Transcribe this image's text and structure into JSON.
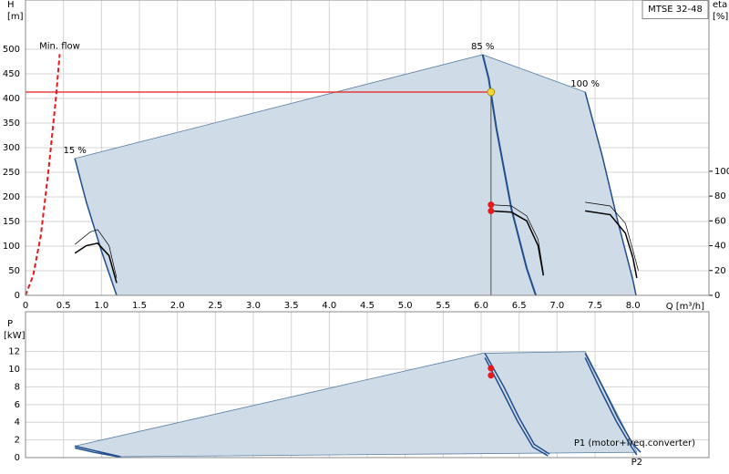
{
  "chart_data": [
    {
      "type": "line",
      "title": "MTSE 32-48",
      "y_label": "H",
      "y_unit": "[m]",
      "y2_label": "eta",
      "y2_unit": "[%]",
      "x_label": "Q [m³/h]",
      "xlim": [
        0,
        9
      ],
      "ylim": [
        0,
        600
      ],
      "y2lim": [
        0,
        238
      ],
      "grid": true,
      "xticks": [
        0,
        0.5,
        {
          "value": 1,
          "label": "1.0"
        },
        1.5,
        {
          "value": 2,
          "label": "2.0"
        },
        2.5,
        {
          "value": 3,
          "label": "3.0"
        },
        3.5,
        {
          "value": 4,
          "label": "4.0"
        },
        4.5,
        {
          "value": 5,
          "label": "5.0"
        },
        5.5,
        {
          "value": 6,
          "label": "6.0"
        },
        6.5,
        {
          "value": 7,
          "label": "7.0"
        },
        7.5,
        {
          "value": 8,
          "label": "8.0"
        }
      ],
      "yticks": [
        0,
        50,
        100,
        150,
        200,
        250,
        300,
        350,
        400,
        450,
        500
      ],
      "y2ticks": [
        0,
        20,
        40,
        60,
        80,
        100
      ],
      "area": {
        "color": "#cfdbe6",
        "edge": "#5a7fa6",
        "x": [
          0.65,
          6.02,
          7.37,
          7.6,
          7.8,
          8.0,
          8.04,
          1.2,
          1.0,
          0.8
        ],
        "values": [
          278,
          489,
          413,
          280,
          150,
          30,
          0,
          0,
          90,
          190
        ]
      },
      "series": [
        {
          "name": "Min. flow",
          "color": "#e8191b",
          "style": "dashed",
          "linewidth": 2,
          "x": [
            0,
            0.1,
            0.2,
            0.3,
            0.4,
            0.45
          ],
          "values": [
            0,
            40,
            120,
            250,
            400,
            490
          ]
        },
        {
          "name": "15 %",
          "color": "#1f4e8c",
          "linewidth": 1.5,
          "x": [
            0.65,
            0.8,
            1.0,
            1.2
          ],
          "values": [
            278,
            190,
            90,
            0
          ]
        },
        {
          "name": "85 %",
          "color": "#1f4e8c",
          "linewidth": 2,
          "x": [
            6.02,
            6.1,
            6.2,
            6.4,
            6.6,
            6.72
          ],
          "values": [
            489,
            440,
            340,
            175,
            55,
            0
          ]
        },
        {
          "name": "100 %",
          "color": "#1f4e8c",
          "linewidth": 1.5,
          "x": [
            7.37,
            7.6,
            7.8,
            8.0,
            8.04
          ],
          "values": [
            413,
            280,
            150,
            30,
            0
          ]
        },
        {
          "color": "#000000",
          "linewidth": 1.5,
          "axis": "y2",
          "x": [
            0.65,
            0.8,
            0.95,
            1.1,
            1.2
          ],
          "values": [
            34,
            40,
            42,
            32,
            10
          ]
        },
        {
          "color": "#000000",
          "linewidth": 0.7,
          "axis": "y2",
          "x": [
            0.65,
            0.85,
            0.95,
            1.1,
            1.2
          ],
          "values": [
            41,
            51,
            53,
            40,
            14
          ]
        },
        {
          "color": "#000000",
          "linewidth": 1.5,
          "axis": "y2",
          "x": [
            6.13,
            6.4,
            6.6,
            6.75,
            6.82
          ],
          "values": [
            68,
            67,
            60,
            40,
            16
          ]
        },
        {
          "color": "#000000",
          "linewidth": 0.7,
          "axis": "y2",
          "x": [
            6.13,
            6.4,
            6.6,
            6.75,
            6.82
          ],
          "values": [
            73,
            72,
            64,
            45,
            18
          ]
        },
        {
          "color": "#000000",
          "linewidth": 1.5,
          "axis": "y2",
          "x": [
            7.37,
            7.7,
            7.9,
            8.0,
            8.05
          ],
          "values": [
            68,
            65,
            50,
            30,
            14
          ]
        },
        {
          "color": "#000000",
          "linewidth": 0.7,
          "axis": "y2",
          "x": [
            7.37,
            7.7,
            7.9,
            8.0,
            8.07
          ],
          "values": [
            75,
            72,
            58,
            36,
            20
          ]
        }
      ],
      "duty_point": {
        "x": 6.13,
        "y": 413,
        "color": "#f5d33a",
        "line_color": "#e8191b"
      },
      "points": {
        "x": 6.13,
        "axis": "y2",
        "color": "#e8191b",
        "values": [
          73,
          68
        ]
      }
    },
    {
      "type": "line",
      "y_label": "P",
      "y_unit": "[kW]",
      "xlim": [
        0,
        9
      ],
      "ylim": [
        0,
        16.5
      ],
      "grid": true,
      "yticks": [
        0,
        2,
        4,
        6,
        8,
        10,
        12
      ],
      "area": {
        "color": "#cfdbe6",
        "edge": "#5a7fa6",
        "x": [
          0.65,
          6.02,
          7.37,
          8.05,
          1.25
        ],
        "values": [
          1.3,
          11.8,
          12,
          0.6,
          0.1
        ]
      },
      "series": [
        {
          "color": "#1f4e8c",
          "linewidth": 1.5,
          "x": [
            0.65,
            0.9,
            1.25
          ],
          "values": [
            1.3,
            0.8,
            0.1
          ]
        },
        {
          "color": "#1f4e8c",
          "linewidth": 1.5,
          "x": [
            0.65,
            0.9,
            1.25
          ],
          "values": [
            1.1,
            0.6,
            0.05
          ]
        },
        {
          "color": "#1f4e8c",
          "linewidth": 1.5,
          "x": [
            6.05,
            6.3,
            6.5,
            6.7,
            6.9
          ],
          "values": [
            11.8,
            8,
            4.5,
            1.5,
            0.4
          ]
        },
        {
          "color": "#1f4e8c",
          "linewidth": 1.5,
          "x": [
            6.05,
            6.28,
            6.48,
            6.68,
            6.88
          ],
          "values": [
            11.3,
            7.5,
            4.1,
            1.2,
            0.2
          ]
        },
        {
          "name": "P1 (motor+freq.converter)",
          "label_position": "end-right",
          "color": "#1f4e8c",
          "linewidth": 1.5,
          "x": [
            7.37,
            7.6,
            7.8,
            8.0,
            8.1
          ],
          "values": [
            11.8,
            8,
            4.5,
            1.5,
            0.6
          ]
        },
        {
          "name": "P2",
          "label_position": "below-end",
          "color": "#1f4e8c",
          "linewidth": 1.5,
          "x": [
            7.37,
            7.58,
            7.78,
            7.98,
            8.05
          ],
          "values": [
            11.3,
            7.5,
            4.1,
            1.2,
            0.3
          ]
        }
      ],
      "points": {
        "x": 6.13,
        "color": "#e8191b",
        "values": [
          10.1,
          9.3
        ]
      }
    }
  ]
}
